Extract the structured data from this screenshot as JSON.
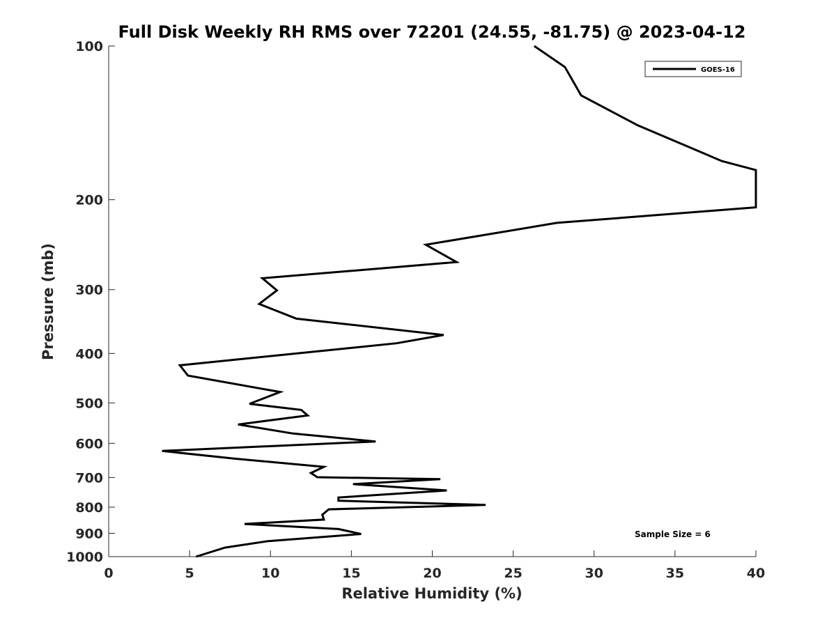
{
  "chart_data": {
    "type": "line",
    "title": "Full Disk Weekly RH RMS over 72201 (24.55, -81.75) @ 2023-04-12",
    "xlabel": "Relative Humidity (%)",
    "ylabel": "Pressure (mb)",
    "xlim": [
      0,
      40
    ],
    "ylim": [
      100,
      1000
    ],
    "y_scale": "log",
    "y_reversed": true,
    "grid": false,
    "x_ticks": [
      0,
      5,
      10,
      15,
      20,
      25,
      30,
      35,
      40
    ],
    "y_ticks": [
      100,
      200,
      300,
      400,
      500,
      600,
      700,
      800,
      900,
      1000
    ],
    "legend": {
      "position": "top-right",
      "entries": [
        "GOES-16"
      ]
    },
    "annotation": "Sample Size = 6",
    "series": [
      {
        "name": "GOES-16",
        "color": "#000000",
        "x": [
          26.3,
          28.2,
          29.2,
          32.7,
          37.9,
          40.0,
          40.0,
          27.7,
          19.6,
          21.5,
          9.5,
          10.4,
          9.3,
          11.6,
          20.7,
          17.8,
          4.4,
          4.9,
          10.6,
          8.7,
          11.9,
          12.3,
          8.0,
          11.4,
          16.5,
          3.3,
          7.8,
          13.3,
          12.5,
          12.9,
          20.5,
          15.1,
          20.9,
          14.2,
          14.2,
          23.3,
          13.6,
          13.2,
          13.3,
          8.4,
          14.2,
          15.6,
          9.8,
          7.2,
          5.4
        ],
        "y": [
          100,
          110,
          125,
          143,
          168,
          175,
          207,
          222,
          245,
          265,
          285,
          301,
          320,
          342,
          368,
          382,
          422,
          442,
          476,
          502,
          516,
          529,
          551,
          574,
          595,
          621,
          643,
          667,
          686,
          699,
          705,
          721,
          742,
          766,
          777,
          792,
          808,
          828,
          846,
          863,
          883,
          903,
          933,
          960,
          1000
        ]
      }
    ]
  }
}
